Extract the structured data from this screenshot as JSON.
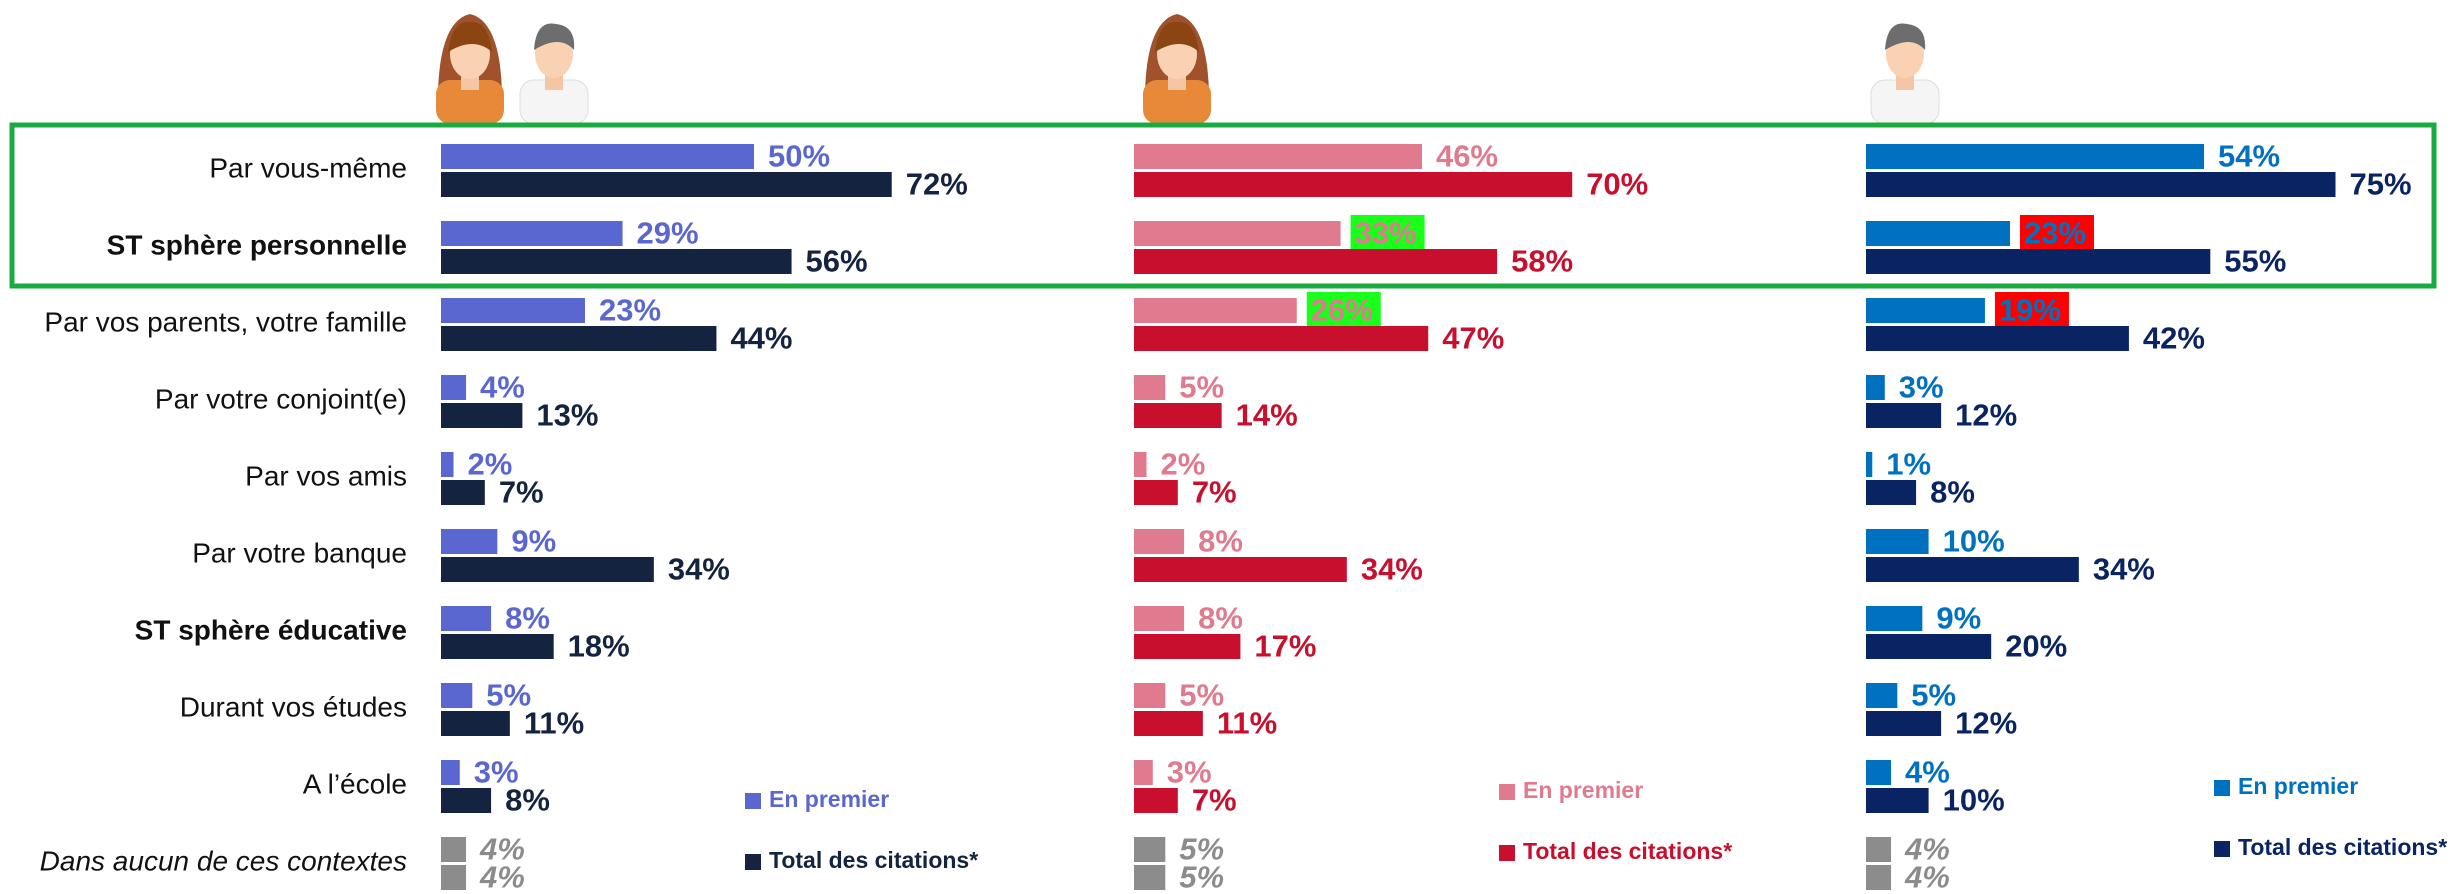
{
  "chart_data": [
    {
      "type": "bar",
      "categories": [
        "Par vous-même",
        "ST sphère personnelle",
        "Par vos parents, votre famille",
        "Par votre conjoint(e)",
        "Par vos amis",
        "Par votre banque",
        "ST sphère éducative",
        "Durant vos études",
        "A l’école",
        "Dans aucun de ces contextes"
      ],
      "other_color": "#8c8c8c",
      "series": [
        {
          "name": "En premier",
          "color": "#5b67d1",
          "values": [
            50,
            29,
            23,
            4,
            2,
            9,
            8,
            5,
            3,
            4
          ],
          "value_labels": [
            "50%",
            "29%",
            "23%",
            "4%",
            "2%",
            "9%",
            "8%",
            "5%",
            "3%",
            "4%"
          ]
        },
        {
          "name": "Total des citations*",
          "color": "#14233f",
          "values": [
            72,
            56,
            44,
            13,
            7,
            34,
            18,
            11,
            8,
            4
          ],
          "value_labels": [
            "72%",
            "56%",
            "44%",
            "13%",
            "7%",
            "34%",
            "18%",
            "11%",
            "8%",
            "4%"
          ]
        }
      ]
    },
    {
      "type": "bar",
      "other_color": "#8c8c8c",
      "label_highlight": [
        null,
        "#1aff1a",
        "#1aff1a",
        null,
        null,
        null,
        null,
        null,
        null,
        null
      ],
      "series": [
        {
          "name": "En premier",
          "color": "#e07a8e",
          "values": [
            46,
            33,
            26,
            5,
            2,
            8,
            8,
            5,
            3,
            5
          ],
          "value_labels": [
            "46%",
            "33%",
            "26%",
            "5%",
            "2%",
            "8%",
            "8%",
            "5%",
            "3%",
            "5%"
          ]
        },
        {
          "name": "Total des citations*",
          "color": "#c8102e",
          "values": [
            70,
            58,
            47,
            14,
            7,
            34,
            17,
            11,
            7,
            5
          ],
          "value_labels": [
            "70%",
            "58%",
            "47%",
            "14%",
            "7%",
            "34%",
            "17%",
            "11%",
            "7%",
            "5%"
          ]
        }
      ]
    },
    {
      "type": "bar",
      "other_color": "#8c8c8c",
      "label_highlight": [
        null,
        "#ff0000",
        "#ff0000",
        null,
        null,
        null,
        null,
        null,
        null,
        null
      ],
      "series": [
        {
          "name": "En premier",
          "color": "#0070c0",
          "values": [
            54,
            23,
            19,
            3,
            1,
            10,
            9,
            5,
            4,
            4
          ],
          "value_labels": [
            "54%",
            "23%",
            "19%",
            "3%",
            "1%",
            "10%",
            "9%",
            "5%",
            "4%",
            "4%"
          ]
        },
        {
          "name": "Total des citations*",
          "color": "#0a2463",
          "values": [
            75,
            55,
            42,
            12,
            8,
            34,
            20,
            12,
            10,
            4
          ],
          "value_labels": [
            "75%",
            "55%",
            "42%",
            "12%",
            "8%",
            "34%",
            "20%",
            "12%",
            "10%",
            "4%"
          ]
        }
      ]
    }
  ]
}
